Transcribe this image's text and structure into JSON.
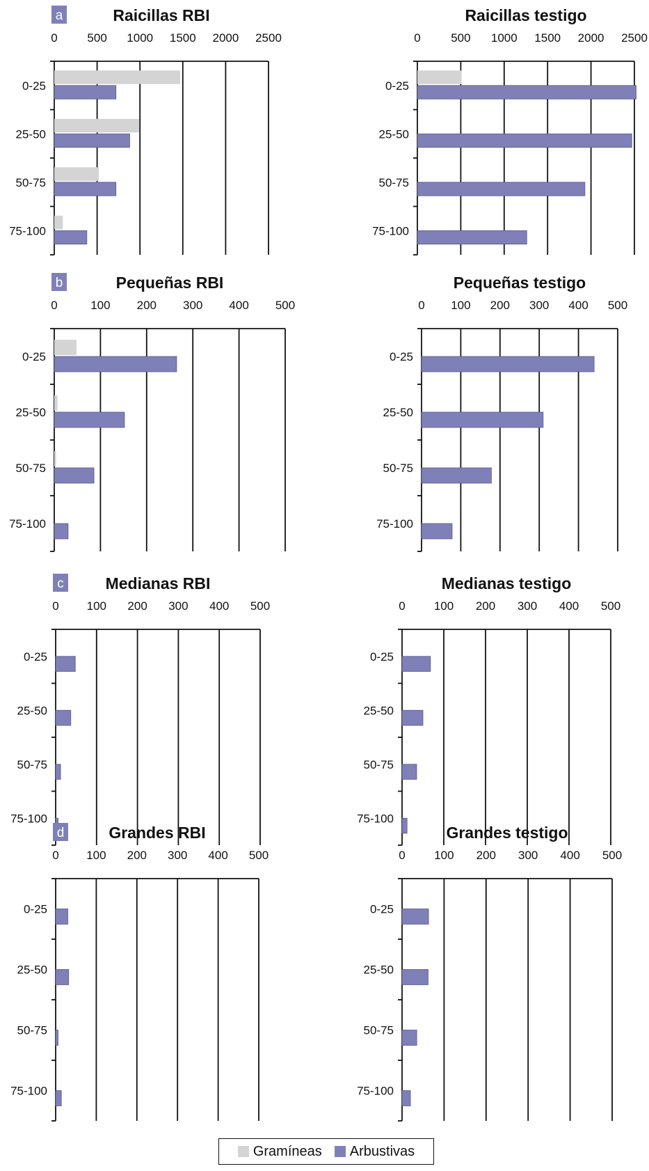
{
  "colors": {
    "gramineas": "#d4d4d4",
    "arbustivas": "#8080b8",
    "panel_badge": "#8080b8",
    "axis": "#111111"
  },
  "legend": {
    "gramineas": "Gramíneas",
    "arbustivas": "Arbustivas"
  },
  "chart_data": [
    {
      "type": "bar",
      "orientation": "horizontal",
      "panel_label": "a",
      "title": "Raicillas RBI",
      "categories": [
        "0-25",
        "25-50",
        "50-75",
        "75-100"
      ],
      "xlim": [
        0,
        2500
      ],
      "xticks": [
        "0",
        "500",
        "1000",
        "1500",
        "2000",
        "2500"
      ],
      "grid": true,
      "series": [
        {
          "name": "Gramíneas",
          "values": [
            1470,
            990,
            520,
            100
          ]
        },
        {
          "name": "Arbustivas",
          "values": [
            720,
            880,
            720,
            380
          ]
        }
      ]
    },
    {
      "type": "bar",
      "orientation": "horizontal",
      "panel_label": "",
      "title": "Raicillas testigo",
      "categories": [
        "0-25",
        "25-50",
        "50-75",
        "75-100"
      ],
      "xlim": [
        0,
        2500
      ],
      "xticks": [
        "0",
        "500",
        "1000",
        "1500",
        "2000",
        "2500"
      ],
      "grid": true,
      "series": [
        {
          "name": "Gramíneas",
          "values": [
            510,
            0,
            0,
            0
          ]
        },
        {
          "name": "Arbustivas",
          "values": [
            2520,
            2470,
            1930,
            1260
          ]
        }
      ]
    },
    {
      "type": "bar",
      "orientation": "horizontal",
      "panel_label": "b",
      "title": "Pequeñas RBI",
      "categories": [
        "0-25",
        "25-50",
        "50-75",
        "75-100"
      ],
      "xlim": [
        0,
        500
      ],
      "xticks": [
        "0",
        "100",
        "200",
        "300",
        "400",
        "500"
      ],
      "grid": true,
      "series": [
        {
          "name": "Gramíneas",
          "values": [
            48,
            7,
            4,
            0
          ]
        },
        {
          "name": "Arbustivas",
          "values": [
            265,
            152,
            86,
            30
          ]
        }
      ]
    },
    {
      "type": "bar",
      "orientation": "horizontal",
      "panel_label": "",
      "title": "Pequeñas testigo",
      "categories": [
        "0-25",
        "25-50",
        "50-75",
        "75-100"
      ],
      "xlim": [
        0,
        500
      ],
      "xticks": [
        "0",
        "100",
        "200",
        "300",
        "400",
        "500"
      ],
      "grid": true,
      "series": [
        {
          "name": "Gramíneas",
          "values": [
            0,
            0,
            0,
            0
          ]
        },
        {
          "name": "Arbustivas",
          "values": [
            440,
            310,
            178,
            78
          ]
        }
      ]
    },
    {
      "type": "bar",
      "orientation": "horizontal",
      "panel_label": "c",
      "title": "Medianas RBI",
      "categories": [
        "0-25",
        "25-50",
        "50-75",
        "75-100"
      ],
      "xlim": [
        0,
        500
      ],
      "xticks": [
        "0",
        "100",
        "200",
        "300",
        "400",
        "500"
      ],
      "grid": true,
      "series": [
        {
          "name": "Gramíneas",
          "values": [
            0,
            0,
            0,
            0
          ]
        },
        {
          "name": "Arbustivas",
          "values": [
            48,
            37,
            12,
            6
          ]
        }
      ]
    },
    {
      "type": "bar",
      "orientation": "horizontal",
      "panel_label": "",
      "title": "Medianas testigo",
      "categories": [
        "0-25",
        "25-50",
        "50-75",
        "75-100"
      ],
      "xlim": [
        0,
        500
      ],
      "xticks": [
        "0",
        "100",
        "200",
        "300",
        "400",
        "500"
      ],
      "grid": true,
      "series": [
        {
          "name": "Gramíneas",
          "values": [
            0,
            0,
            0,
            0
          ]
        },
        {
          "name": "Arbustivas",
          "values": [
            68,
            50,
            35,
            12
          ]
        }
      ]
    },
    {
      "type": "bar",
      "orientation": "horizontal",
      "panel_label": "d",
      "title": "Grandes RBI",
      "categories": [
        "0-25",
        "25-50",
        "50-75",
        "75-100"
      ],
      "xlim": [
        0,
        500
      ],
      "xticks": [
        "0",
        "100",
        "200",
        "300",
        "400",
        "500"
      ],
      "grid": true,
      "series": [
        {
          "name": "Gramíneas",
          "values": [
            0,
            0,
            0,
            0
          ]
        },
        {
          "name": "Arbustivas",
          "values": [
            30,
            32,
            6,
            14
          ]
        }
      ]
    },
    {
      "type": "bar",
      "orientation": "horizontal",
      "panel_label": "",
      "title": "Grandes testigo",
      "categories": [
        "0-25",
        "25-50",
        "50-75",
        "75-100"
      ],
      "xlim": [
        0,
        500
      ],
      "xticks": [
        "0",
        "100",
        "200",
        "300",
        "400",
        "500"
      ],
      "grid": true,
      "series": [
        {
          "name": "Gramíneas",
          "values": [
            0,
            0,
            0,
            0
          ]
        },
        {
          "name": "Arbustivas",
          "values": [
            63,
            62,
            35,
            20
          ]
        }
      ]
    }
  ]
}
